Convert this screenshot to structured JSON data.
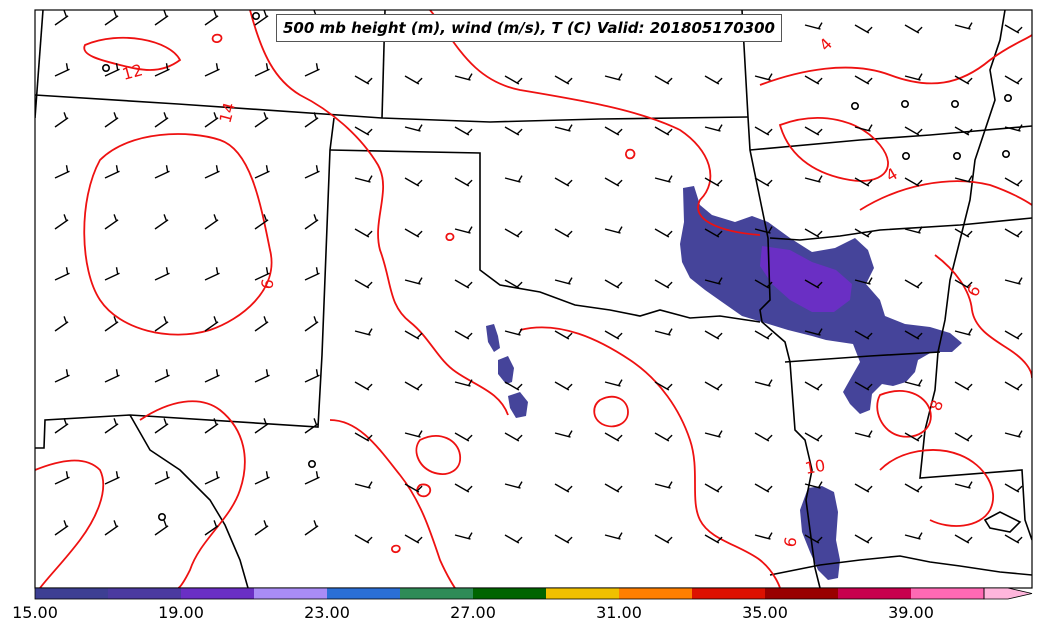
{
  "title": "500 mb height (m), wind (m/s), T (C) Valid: 201805170300",
  "contour_labels": [
    "12",
    "14",
    "4",
    "4",
    "6",
    "8",
    "10",
    "6",
    "6"
  ],
  "colorbar": {
    "tick_labels": [
      "15.00",
      "19.00",
      "23.00",
      "27.00",
      "31.00",
      "35.00",
      "39.00"
    ],
    "colors": [
      "#3d3f93",
      "#4b3aa0",
      "#6a2fc4",
      "#a98cf6",
      "#2b6fd6",
      "#2e8b57",
      "#006400",
      "#f0c000",
      "#ff7f00",
      "#dd1100",
      "#990000",
      "#c8004e",
      "#ff69b4",
      "#ffb6dc"
    ]
  },
  "colors": {
    "contour": "#ee1111",
    "wind_shade": "#45449a",
    "wind_shade_core": "#6a2fc4",
    "boundary": "#000000"
  }
}
